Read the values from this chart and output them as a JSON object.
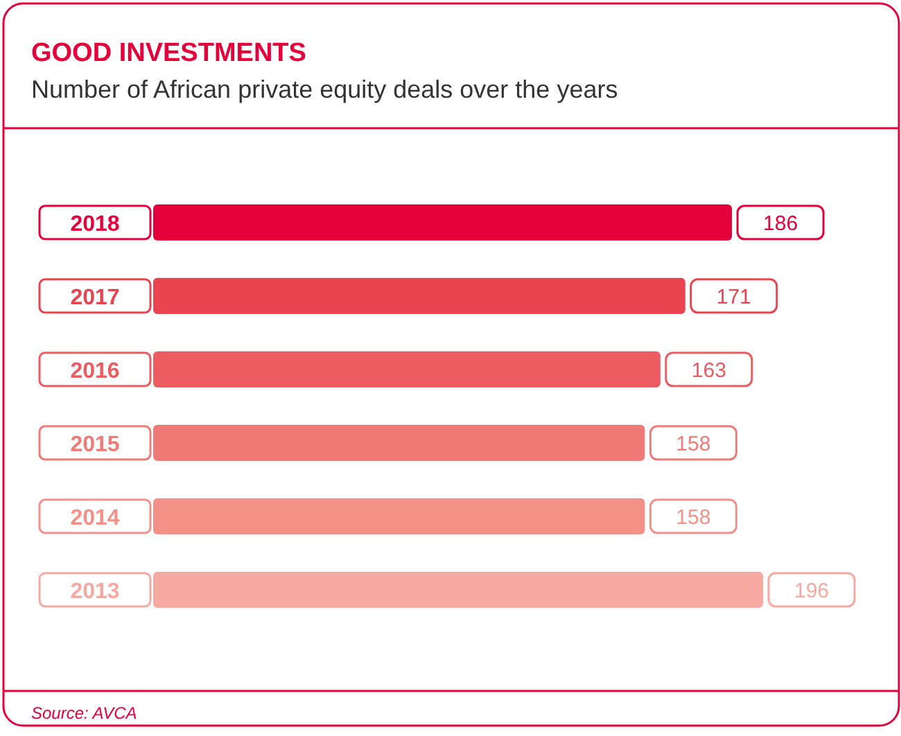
{
  "chart_data": {
    "type": "bar",
    "orientation": "horizontal",
    "title": "GOOD INVESTMENTS",
    "subtitle": "Number of African private equity deals over the years",
    "categories": [
      "2018",
      "2017",
      "2016",
      "2015",
      "2014",
      "2013"
    ],
    "values": [
      186,
      171,
      163,
      158,
      158,
      196
    ],
    "colors": [
      "#e4003a",
      "#e8434f",
      "#ec5b60",
      "#f07a78",
      "#f39088",
      "#f5a9a0"
    ],
    "data_labels": true,
    "annotations": [
      "Source: AVCA"
    ]
  }
}
